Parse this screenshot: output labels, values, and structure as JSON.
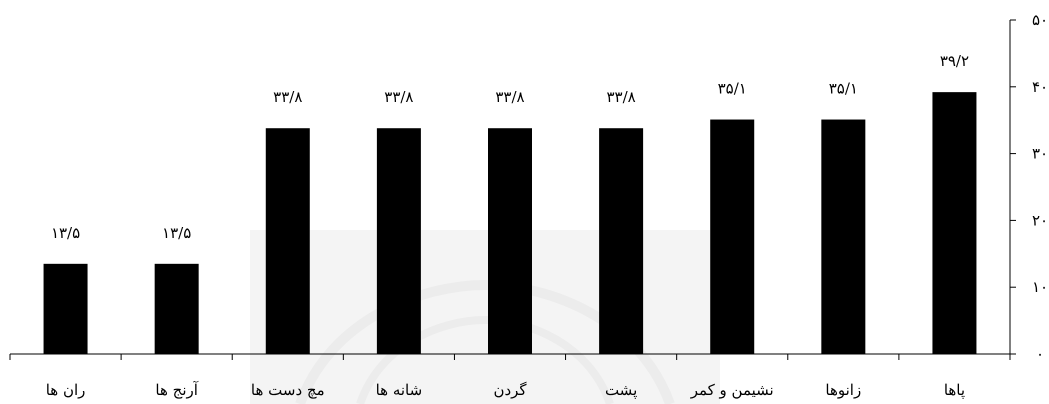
{
  "chart_data": {
    "type": "bar",
    "direction": "rtl",
    "categories": [
      "پاها",
      "زانوها",
      "نشیمن و کمر",
      "پشت",
      "گردن",
      "شانه ها",
      "مچ دست ها",
      "آرنج ها",
      "ران ها"
    ],
    "values": [
      39.2,
      35.1,
      35.1,
      33.8,
      33.8,
      33.8,
      33.8,
      13.5,
      13.5
    ],
    "data_labels": [
      "۳۹/۲",
      "۳۵/۱",
      "۳۵/۱",
      "۳۳/۸",
      "۳۳/۸",
      "۳۳/۸",
      "۳۳/۸",
      "۱۳/۵",
      "۱۳/۵"
    ],
    "ylim": [
      0,
      50
    ],
    "yticks": [
      0,
      10,
      20,
      30,
      40,
      50
    ],
    "ytick_labels": [
      "۰",
      "۱۰",
      "۲۰",
      "۳۰",
      "۴۰",
      "۵۰"
    ],
    "y_axis_side": "right",
    "grid": false,
    "bar_color": "#000000",
    "title": "",
    "xlabel": "",
    "ylabel": ""
  }
}
